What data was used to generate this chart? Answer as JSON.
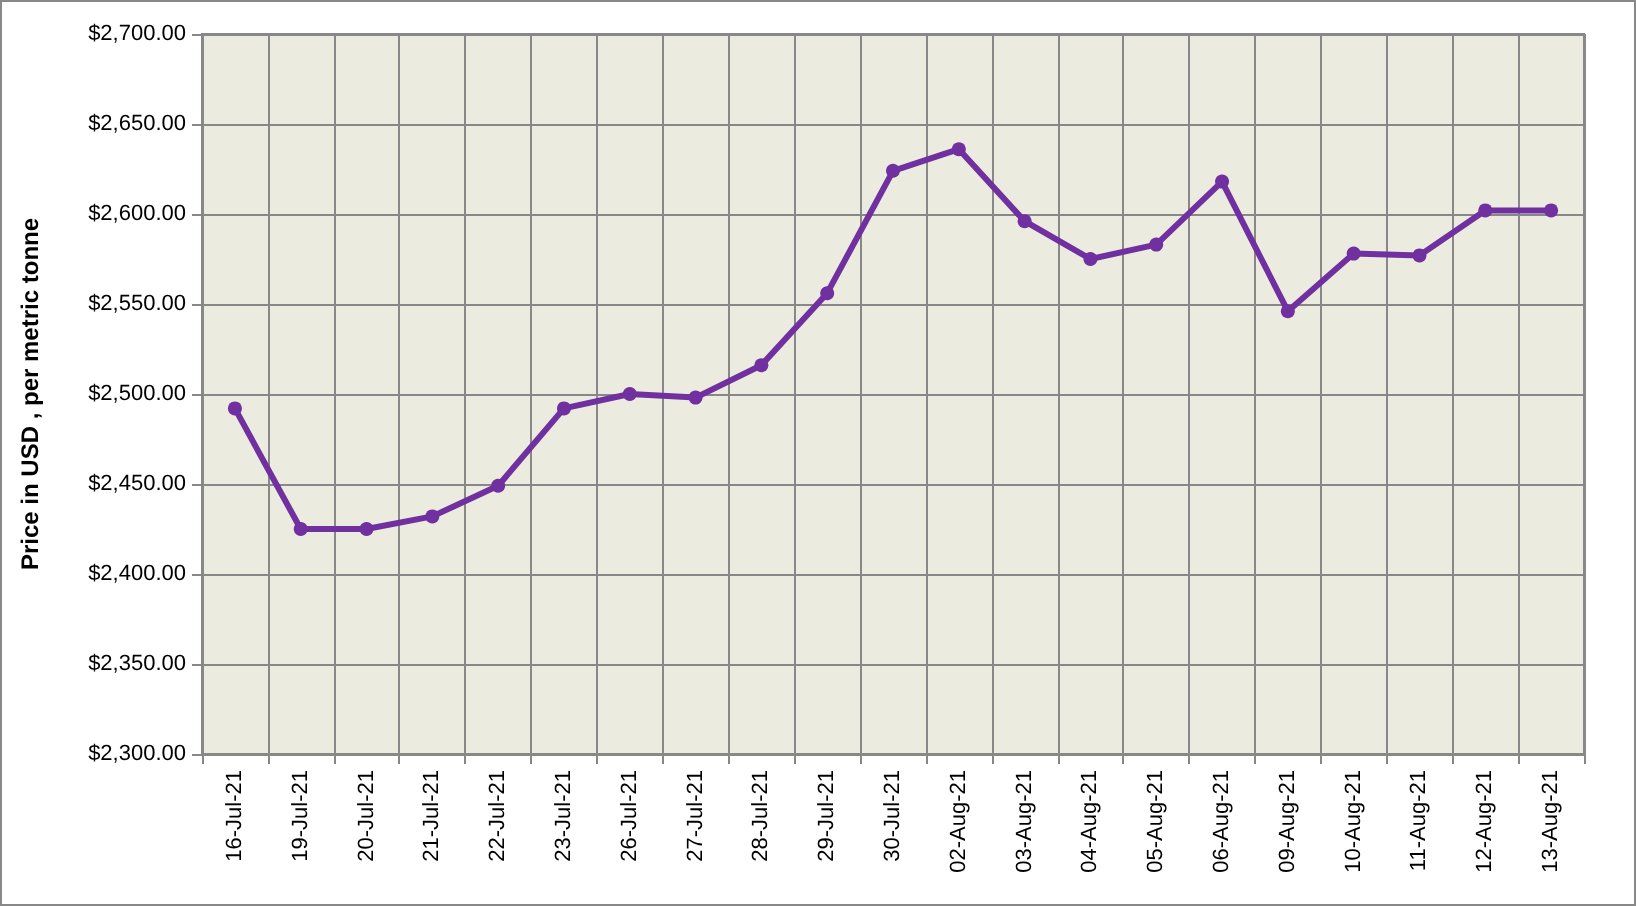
{
  "chart_data": {
    "type": "line",
    "ylabel": "Price in USD , per metric tonne",
    "categories": [
      "16-Jul-21",
      "19-Jul-21",
      "20-Jul-21",
      "21-Jul-21",
      "22-Jul-21",
      "23-Jul-21",
      "26-Jul-21",
      "27-Jul-21",
      "28-Jul-21",
      "29-Jul-21",
      "30-Jul-21",
      "02-Aug-21",
      "03-Aug-21",
      "04-Aug-21",
      "05-Aug-21",
      "06-Aug-21",
      "09-Aug-21",
      "10-Aug-21",
      "11-Aug-21",
      "12-Aug-21",
      "13-Aug-21"
    ],
    "series": [
      {
        "color": "#7030a0",
        "values": [
          2492,
          2425,
          2425,
          2432,
          2449,
          2492,
          2500,
          2498,
          2516,
          2556,
          2624,
          2636,
          2596,
          2575,
          2583,
          2618,
          2546,
          2578,
          2577,
          2602,
          2602
        ]
      }
    ],
    "ylim": [
      2300,
      2700
    ],
    "yticks": [
      {
        "value": 2300,
        "label": "$2,300.00"
      },
      {
        "value": 2350,
        "label": "$2,350.00"
      },
      {
        "value": 2400,
        "label": "$2,400.00"
      },
      {
        "value": 2450,
        "label": "$2,450.00"
      },
      {
        "value": 2500,
        "label": "$2,500.00"
      },
      {
        "value": 2550,
        "label": "$2,550.00"
      },
      {
        "value": 2600,
        "label": "$2,600.00"
      },
      {
        "value": 2650,
        "label": "$2,650.00"
      },
      {
        "value": 2700,
        "label": "$2,700.00"
      }
    ],
    "grid": true,
    "marker": "circle",
    "line_style": "solid"
  }
}
